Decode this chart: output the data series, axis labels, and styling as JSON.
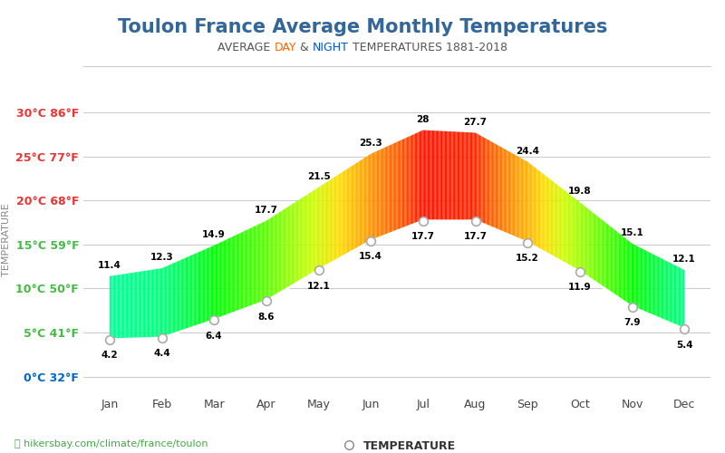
{
  "title": "Toulon France Average Monthly Temperatures",
  "subtitle_parts": [
    "AVERAGE ",
    "DAY",
    " & ",
    "NIGHT",
    " TEMPERATURES 1881-2018"
  ],
  "subtitle_colors": [
    "#555555",
    "#ff6600",
    "#555555",
    "#0055cc",
    "#555555"
  ],
  "months": [
    "Jan",
    "Feb",
    "Mar",
    "Apr",
    "May",
    "Jun",
    "Jul",
    "Aug",
    "Sep",
    "Oct",
    "Nov",
    "Dec"
  ],
  "day_temps": [
    11.4,
    12.3,
    14.9,
    17.7,
    21.5,
    25.3,
    28.0,
    27.7,
    24.4,
    19.8,
    15.1,
    12.1
  ],
  "night_temps": [
    4.2,
    4.4,
    6.4,
    8.6,
    12.1,
    15.4,
    17.7,
    17.7,
    15.2,
    11.9,
    7.9,
    5.4
  ],
  "yticks_c": [
    0,
    5,
    10,
    15,
    20,
    25,
    30
  ],
  "ytick_labels": [
    "0°C 32°F",
    "5°C 41°F",
    "10°C 50°F",
    "15°C 59°F",
    "20°C 68°F",
    "25°C 77°F",
    "30°C 86°F"
  ],
  "ytick_colors": [
    "#0066cc",
    "#44bb44",
    "#44bb44",
    "#44bb44",
    "#ee3333",
    "#ee3333",
    "#ee3333"
  ],
  "ylim": [
    -2,
    33
  ],
  "ylabel": "TEMPERATURE",
  "background_color": "#ffffff",
  "grid_color": "#cccccc",
  "title_color": "#336699",
  "title_fontsize": 15,
  "subtitle_fontsize": 9,
  "axis_label_color": "#888888",
  "watermark": "hikersbay.com/climate/france/toulon",
  "watermark_color": "#44aa44",
  "legend_label": "TEMPERATURE",
  "temp_color_stops": [
    [
      0,
      [
        0,
        0,
        220
      ]
    ],
    [
      4,
      [
        0,
        100,
        255
      ]
    ],
    [
      7,
      [
        0,
        200,
        255
      ]
    ],
    [
      10,
      [
        0,
        255,
        200
      ]
    ],
    [
      13,
      [
        0,
        255,
        100
      ]
    ],
    [
      15,
      [
        0,
        255,
        0
      ]
    ],
    [
      18,
      [
        100,
        255,
        0
      ]
    ],
    [
      21,
      [
        200,
        255,
        0
      ]
    ],
    [
      23,
      [
        255,
        220,
        0
      ]
    ],
    [
      25,
      [
        255,
        160,
        0
      ]
    ],
    [
      27,
      [
        255,
        80,
        0
      ]
    ],
    [
      28,
      [
        255,
        20,
        0
      ]
    ],
    [
      30,
      [
        220,
        0,
        0
      ]
    ]
  ]
}
